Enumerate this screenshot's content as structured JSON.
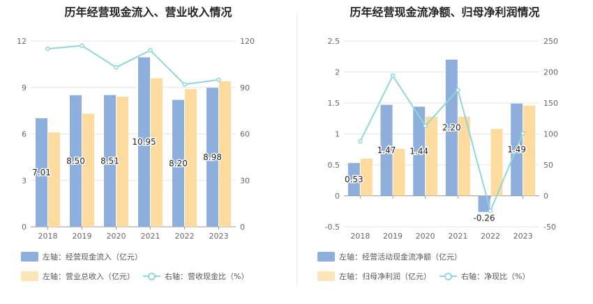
{
  "colors": {
    "bar_primary": "#8eaedc",
    "bar_secondary": "#fddb9e",
    "line": "#8fd6dc",
    "grid": "#e6e6e6",
    "axis_text": "#666666"
  },
  "chart_data": [
    {
      "type": "bar",
      "title": "历年经营现金流入、营业收入情况",
      "categories": [
        "2018",
        "2019",
        "2020",
        "2021",
        "2022",
        "2023"
      ],
      "left_axis": {
        "min": 0,
        "max": 12,
        "ticks": [
          "0",
          "3",
          "6",
          "9",
          "12"
        ]
      },
      "right_axis": {
        "min": 0,
        "max": 120,
        "ticks": [
          "0",
          "30",
          "60",
          "90",
          "120"
        ]
      },
      "series": [
        {
          "name": "左轴：经营现金流入（亿元）",
          "type": "bar",
          "axis": "left",
          "values": [
            7.01,
            8.5,
            8.51,
            10.95,
            8.2,
            8.98
          ],
          "labels": [
            "7.01",
            "8.50",
            "8.51",
            "10.95",
            "8.20",
            "8.98"
          ]
        },
        {
          "name": "左轴：营业总收入（亿元）",
          "type": "bar",
          "axis": "left",
          "values": [
            6.1,
            7.3,
            8.4,
            9.6,
            8.9,
            9.4
          ]
        },
        {
          "name": "右轴：营收现金比（%）",
          "type": "line",
          "axis": "right",
          "values": [
            115,
            117,
            103,
            114,
            92,
            95
          ]
        }
      ]
    },
    {
      "type": "bar",
      "title": "历年经营现金流净额、归母净利润情况",
      "categories": [
        "2018",
        "2019",
        "2020",
        "2021",
        "2022",
        "2023"
      ],
      "left_axis": {
        "min": -0.5,
        "max": 2.5,
        "ticks": [
          "-0.5",
          "0",
          "0.5",
          "1",
          "1.5",
          "2",
          "2.5"
        ]
      },
      "right_axis": {
        "min": -50,
        "max": 250,
        "ticks": [
          "-50",
          "0",
          "50",
          "100",
          "150",
          "200",
          "250"
        ]
      },
      "series": [
        {
          "name": "左轴：经营活动现金流净额（亿元）",
          "type": "bar",
          "axis": "left",
          "values": [
            0.53,
            1.47,
            1.44,
            2.2,
            -0.26,
            1.49
          ],
          "labels": [
            "0.53",
            "1.47",
            "1.44",
            "2.20",
            "-0.26",
            "1.49"
          ]
        },
        {
          "name": "左轴：归母净利润（亿元）",
          "type": "bar",
          "axis": "left",
          "values": [
            0.6,
            0.76,
            1.28,
            1.28,
            1.08,
            1.46
          ]
        },
        {
          "name": "右轴：净现比（%）",
          "type": "line",
          "axis": "right",
          "values": [
            88,
            194,
            113,
            171,
            -24,
            101
          ]
        }
      ]
    }
  ]
}
